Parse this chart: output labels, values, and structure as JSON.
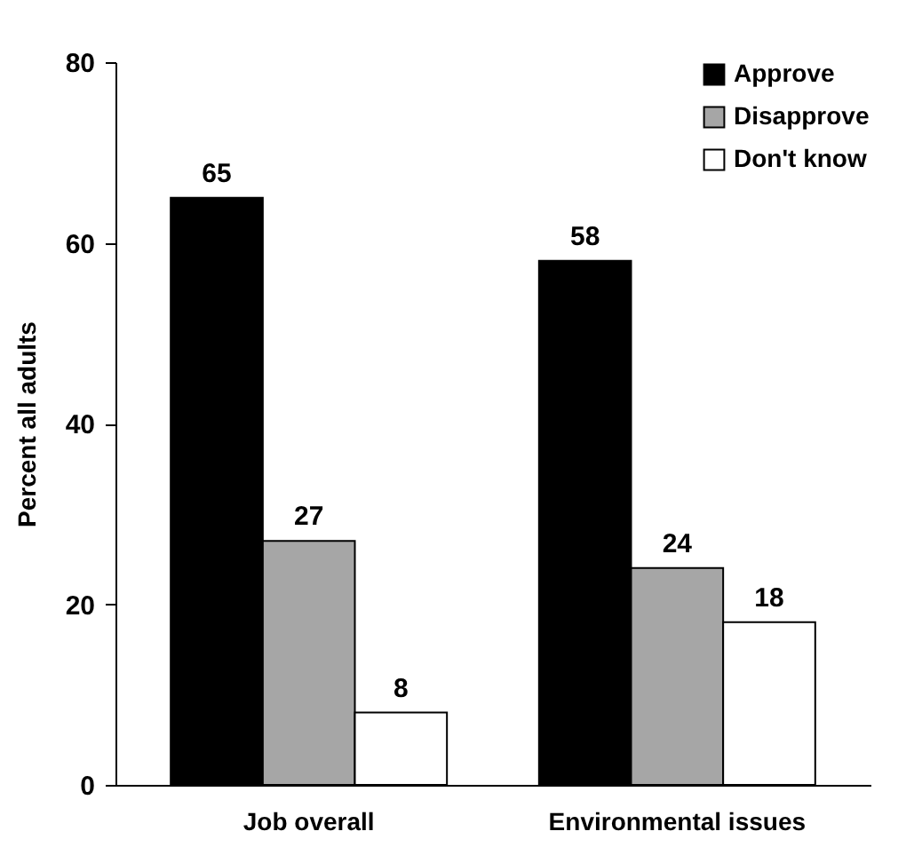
{
  "chart_data": {
    "type": "bar",
    "ylabel": "Percent all adults",
    "categories": [
      "Job overall",
      "Environmental issues"
    ],
    "series": [
      {
        "name": "Approve",
        "color": "#000000",
        "values": [
          65,
          58
        ]
      },
      {
        "name": "Disapprove",
        "color": "#a6a6a6",
        "values": [
          27,
          24
        ]
      },
      {
        "name": "Don't know",
        "color": "#ffffff",
        "values": [
          8,
          18
        ]
      }
    ],
    "ylim": [
      0,
      80
    ],
    "yticks": [
      0,
      20,
      40,
      60,
      80
    ],
    "grid": false,
    "legend": "top right",
    "data_labels": true
  }
}
